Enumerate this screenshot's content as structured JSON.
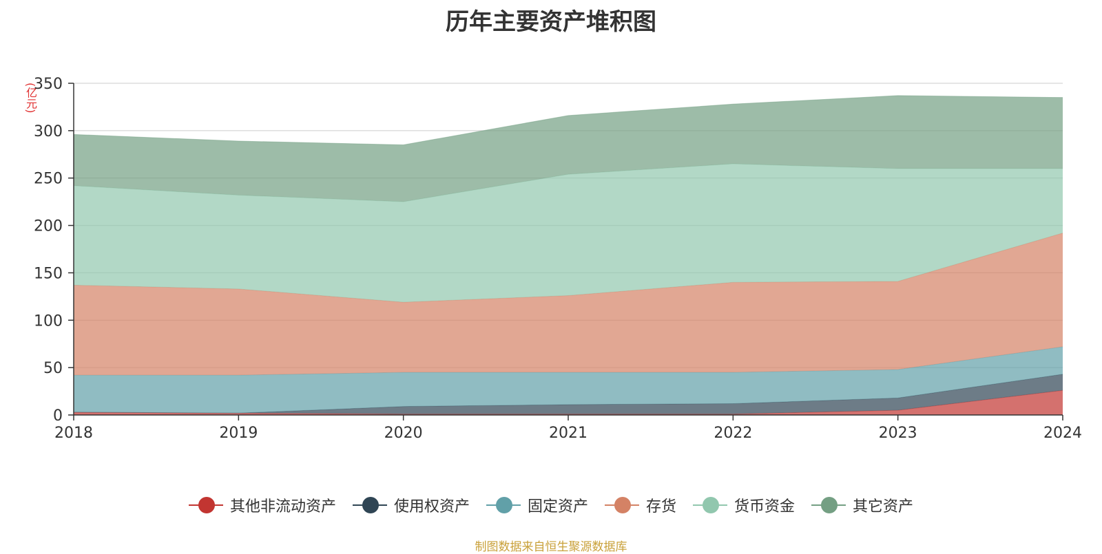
{
  "chart_data": {
    "type": "area",
    "stacked": true,
    "title": "历年主要资产堆积图",
    "ylabel": "(亿元)",
    "xlabel": "",
    "x": [
      "2018",
      "2019",
      "2020",
      "2021",
      "2022",
      "2023",
      "2024"
    ],
    "ylim": [
      0,
      350
    ],
    "yticks": [
      0,
      50,
      100,
      150,
      200,
      250,
      300,
      350
    ],
    "grid": true,
    "legend_position": "bottom",
    "series": [
      {
        "name": "其他非流动资产",
        "color": "#c23531",
        "values": [
          3,
          2,
          1,
          1,
          1,
          5,
          26
        ]
      },
      {
        "name": "使用权资产",
        "color": "#2f4554",
        "values": [
          0,
          0,
          8,
          10,
          11,
          13,
          17
        ]
      },
      {
        "name": "固定资产",
        "color": "#61a0a8",
        "values": [
          39,
          40,
          36,
          34,
          33,
          30,
          29
        ]
      },
      {
        "name": "存货",
        "color": "#d48265",
        "values": [
          95,
          91,
          74,
          81,
          95,
          93,
          120
        ]
      },
      {
        "name": "货币资金",
        "color": "#91c7ae",
        "values": [
          105,
          99,
          106,
          128,
          125,
          119,
          68
        ]
      },
      {
        "name": "其它资产",
        "color": "#749f83",
        "values": [
          54,
          57,
          60,
          62,
          63,
          77,
          75
        ]
      }
    ]
  },
  "source_note": "制图数据来自恒生聚源数据库"
}
